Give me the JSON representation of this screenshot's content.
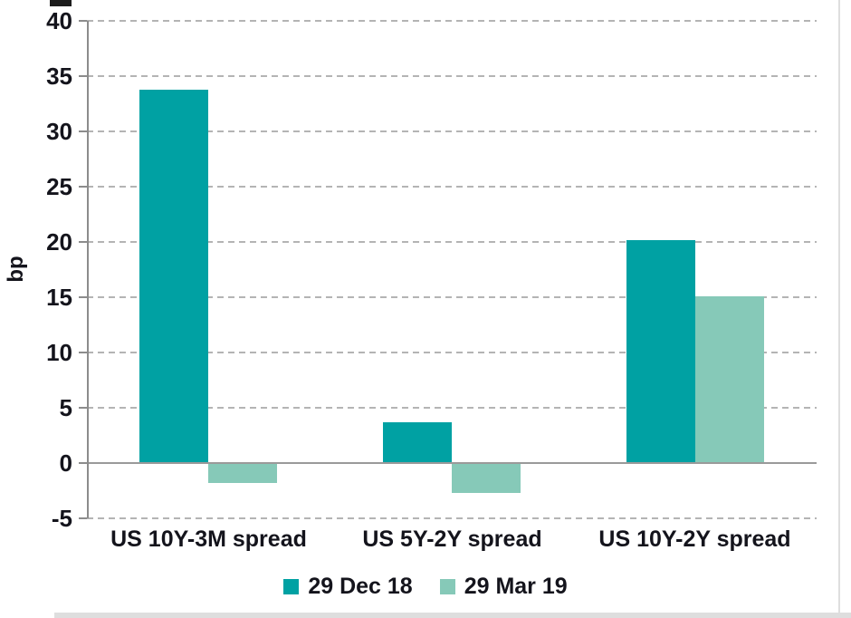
{
  "chart_data": {
    "type": "bar",
    "title": "",
    "ylabel": "bp",
    "xlabel": "",
    "ylim": [
      -5,
      40
    ],
    "ytick_step": 5,
    "yticks": [
      -5,
      0,
      5,
      10,
      15,
      20,
      25,
      30,
      35,
      40
    ],
    "grid": "horizontal-dashed",
    "legend_position": "bottom-center",
    "categories": [
      "US 10Y-3M spread",
      "US 5Y-2Y spread",
      "US 10Y-2Y spread"
    ],
    "series": [
      {
        "name": "29 Dec 18",
        "color": "#00A1A3",
        "values": [
          33.8,
          3.7,
          20.2
        ]
      },
      {
        "name": "29 Mar 19",
        "color": "#86C9B8",
        "values": [
          -1.7,
          -2.6,
          15.1
        ]
      }
    ]
  },
  "colors": {
    "axis": "#8c8c8c",
    "gridline": "#b4b4b4",
    "zero_line": "#9a9a9a",
    "text": "#14141c",
    "page_edge": "#d6d6d6"
  }
}
